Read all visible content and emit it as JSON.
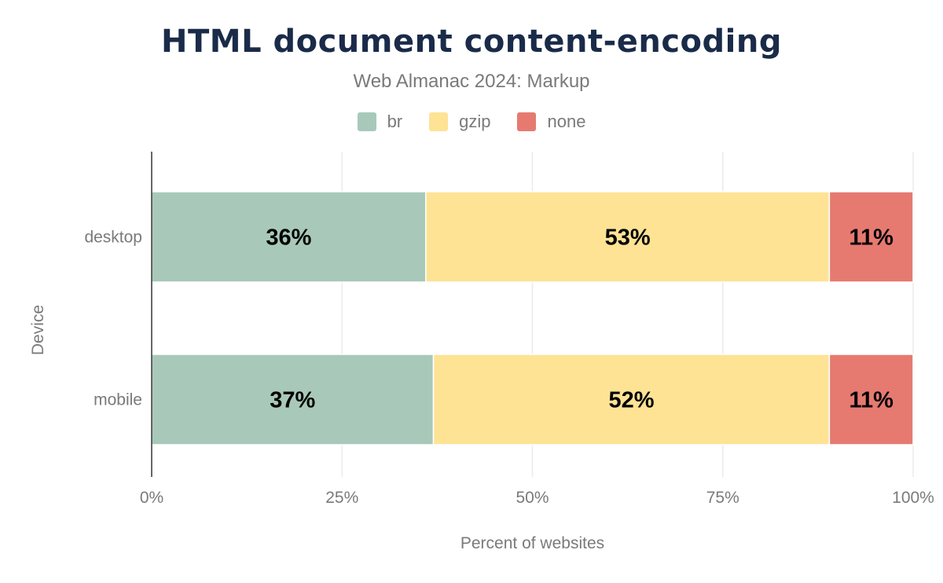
{
  "chart_data": {
    "type": "bar",
    "orientation": "horizontal",
    "stacked": true,
    "title": "HTML document content-encoding",
    "subtitle": "Web Almanac 2024: Markup",
    "xlabel": "Percent of websites",
    "ylabel": "Device",
    "categories": [
      "desktop",
      "mobile"
    ],
    "xlim": [
      0,
      100
    ],
    "xticks": [
      "0%",
      "25%",
      "50%",
      "75%",
      "100%"
    ],
    "grid": true,
    "legend_position": "top",
    "series": [
      {
        "name": "br",
        "color": "#a8c9b9",
        "values": [
          36,
          37
        ],
        "labels": [
          "36%",
          "37%"
        ]
      },
      {
        "name": "gzip",
        "color": "#fee395",
        "values": [
          53,
          52
        ],
        "labels": [
          "53%",
          "52%"
        ]
      },
      {
        "name": "none",
        "color": "#e67a71",
        "values": [
          11,
          11
        ],
        "labels": [
          "11%",
          "11%"
        ]
      }
    ]
  }
}
